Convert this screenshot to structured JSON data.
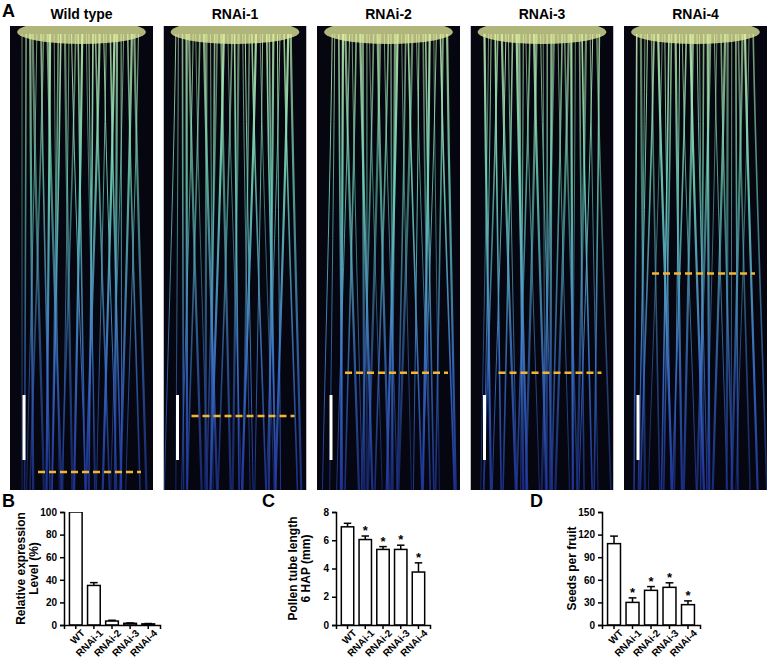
{
  "figure": {
    "panel_labels": [
      "A",
      "B",
      "C",
      "D"
    ],
    "image_labels": [
      "Wild type",
      "RNAi-1",
      "RNAi-2",
      "RNAi-3",
      "RNAi-4"
    ]
  },
  "chart_data": [
    {
      "type": "bar",
      "y_label": [
        "Relative expression",
        "Level (%)"
      ],
      "categories": [
        "WT",
        "RNAi-1",
        "RNAi-2",
        "RNAi-3",
        "RNAi-4"
      ],
      "values": [
        100,
        35,
        3.5,
        1.5,
        1
      ],
      "errors": [
        0,
        2.5,
        0.7,
        0.3,
        0.3
      ],
      "ylim": [
        0,
        100
      ],
      "yticks": [
        0,
        20,
        40,
        60,
        80,
        100
      ],
      "color": "#ffffff"
    },
    {
      "type": "bar",
      "y_label": [
        "Pollen tube length",
        "6 HAP (mm)"
      ],
      "categories": [
        "WT",
        "RNAi-1",
        "RNAi-2",
        "RNAi-3",
        "RNAi-4"
      ],
      "values": [
        6.95,
        6.05,
        5.35,
        5.35,
        3.75
      ],
      "errors": [
        0.25,
        0.25,
        0.2,
        0.3,
        0.65
      ],
      "ylim": [
        0,
        8
      ],
      "yticks": [
        0,
        2,
        4,
        6,
        8
      ],
      "color": "#ffffff",
      "annotations": [
        {
          "index": 1,
          "text": "*"
        },
        {
          "index": 2,
          "text": "*"
        },
        {
          "index": 3,
          "text": "*"
        },
        {
          "index": 4,
          "text": "*"
        }
      ]
    },
    {
      "type": "bar",
      "y_label": [
        "Seeds per fruit"
      ],
      "categories": [
        "WT",
        "RNAi-1",
        "RNAi-2",
        "RNAi-3",
        "RNAi-4"
      ],
      "values": [
        108,
        30,
        46,
        50,
        27
      ],
      "errors": [
        10,
        6,
        5,
        6,
        5
      ],
      "ylim": [
        0,
        150
      ],
      "yticks": [
        0,
        30,
        60,
        90,
        120,
        150
      ],
      "color": "#ffffff",
      "annotations": [
        {
          "index": 1,
          "text": "*"
        },
        {
          "index": 2,
          "text": "*"
        },
        {
          "index": 3,
          "text": "*"
        },
        {
          "index": 4,
          "text": "*"
        }
      ]
    }
  ]
}
